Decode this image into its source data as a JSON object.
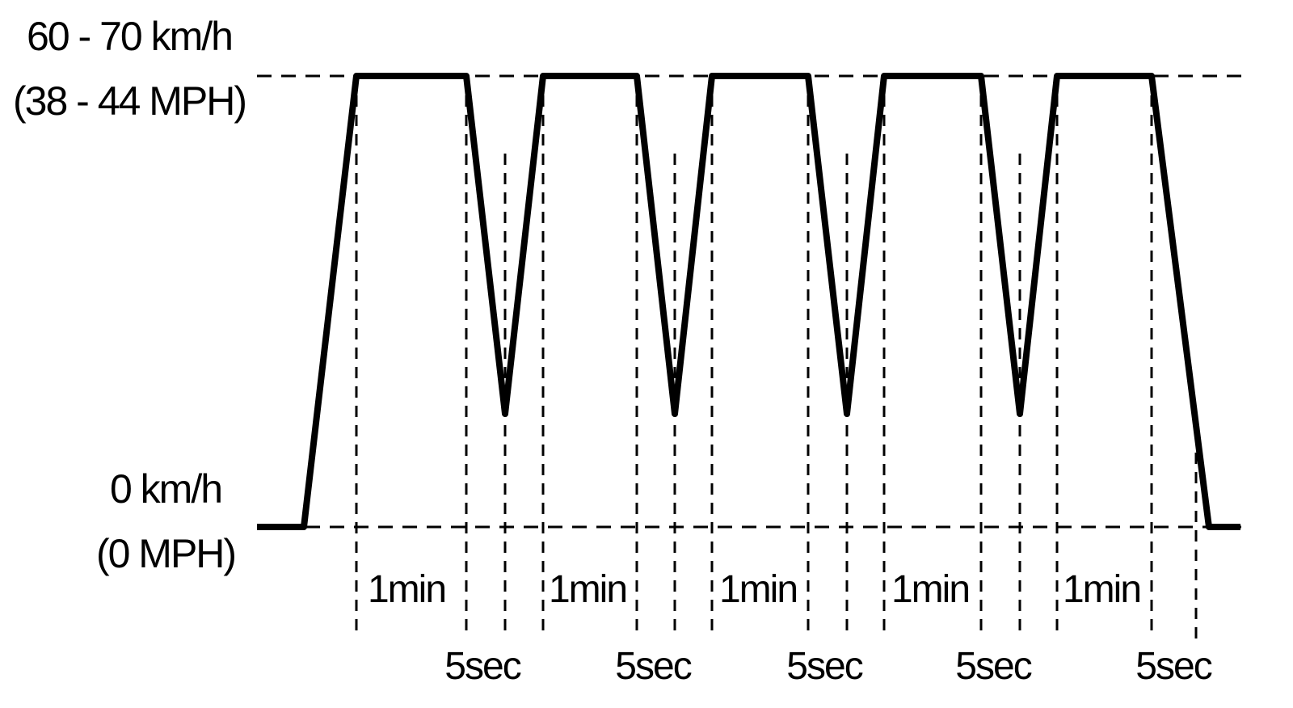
{
  "chart_data": {
    "type": "line",
    "levels": {
      "high": {
        "line1": "60 - 70 km/h",
        "line2": "(38 - 44 MPH)"
      },
      "low": {
        "line1": "0 km/h",
        "line2": "(0 MPH)"
      }
    },
    "hold_label": "1min",
    "dip_label": "5sec",
    "cycles": [
      {
        "hold": "1min",
        "dip": "5sec"
      },
      {
        "hold": "1min",
        "dip": "5sec"
      },
      {
        "hold": "1min",
        "dip": "5sec"
      },
      {
        "hold": "1min",
        "dip": "5sec"
      },
      {
        "hold": "1min",
        "dip": "5sec"
      }
    ]
  },
  "colors": {
    "line": "#000000",
    "background": "#ffffff"
  }
}
